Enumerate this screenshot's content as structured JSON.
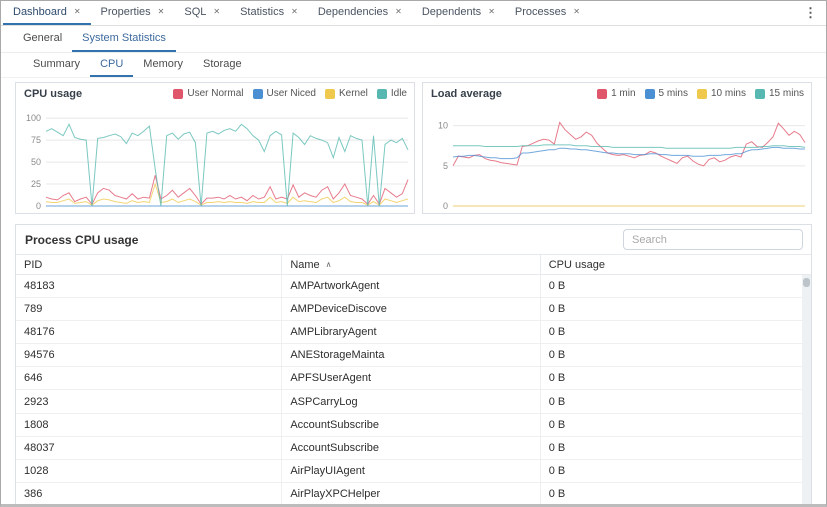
{
  "icons": {
    "close": "✕",
    "menu": "⋮",
    "sort_asc": "∧"
  },
  "colors": {
    "accent_blue": "#3272ad",
    "series_red": "#e0566b",
    "series_blue": "#4a90d2",
    "series_yellow": "#efc84e",
    "series_teal": "#56b8b0"
  },
  "main_tabs": [
    {
      "label": "Dashboard",
      "active": true
    },
    {
      "label": "Properties",
      "active": false
    },
    {
      "label": "SQL",
      "active": false
    },
    {
      "label": "Statistics",
      "active": false
    },
    {
      "label": "Dependencies",
      "active": false
    },
    {
      "label": "Dependents",
      "active": false
    },
    {
      "label": "Processes",
      "active": false
    }
  ],
  "dashboard_tabs": [
    {
      "label": "General",
      "active": false
    },
    {
      "label": "System Statistics",
      "active": true
    }
  ],
  "stats_tabs": [
    {
      "label": "Summary",
      "active": false
    },
    {
      "label": "CPU",
      "active": true
    },
    {
      "label": "Memory",
      "active": false
    },
    {
      "label": "Storage",
      "active": false
    }
  ],
  "chart_data": [
    {
      "type": "line",
      "name": "cpu-usage",
      "title": "CPU usage",
      "ylabel": "",
      "xlabel": "",
      "ylim": [
        0,
        107
      ],
      "yticks": [
        0,
        25,
        50,
        75,
        100
      ],
      "grid": true,
      "legend_position": "top-right",
      "series": [
        {
          "name": "User Normal",
          "color": "#e0566b",
          "values": [
            10,
            8,
            7,
            12,
            15,
            5,
            8,
            10,
            2,
            15,
            20,
            18,
            12,
            10,
            8,
            14,
            8,
            10,
            9,
            35,
            8,
            12,
            18,
            10,
            15,
            20,
            12,
            2,
            9,
            9,
            10,
            8,
            12,
            8,
            10,
            6,
            12,
            8,
            10,
            22,
            8,
            10,
            8,
            24,
            10,
            15,
            12,
            10,
            18,
            22,
            8,
            15,
            25,
            12,
            10,
            8,
            2,
            12,
            2,
            20,
            15,
            10,
            14,
            30
          ]
        },
        {
          "name": "User Niced",
          "color": "#4a90d2",
          "values": [
            0,
            0,
            0,
            0,
            0,
            0,
            0,
            0,
            0,
            0,
            0,
            0,
            0,
            0,
            0,
            0,
            0,
            0,
            0,
            0,
            0,
            0,
            0,
            0,
            0,
            0,
            0,
            0,
            0,
            0,
            0,
            0,
            0,
            0,
            0,
            0,
            0,
            0,
            0,
            0,
            0,
            0,
            0,
            0,
            0,
            0,
            0,
            0,
            0,
            0,
            0,
            0,
            0,
            0,
            0,
            0,
            0,
            0,
            0,
            0,
            0,
            0,
            0,
            0
          ]
        },
        {
          "name": "Kernel",
          "color": "#efc84e",
          "values": [
            5,
            4,
            4,
            6,
            8,
            3,
            4,
            5,
            1,
            6,
            8,
            7,
            5,
            4,
            3,
            6,
            4,
            5,
            4,
            25,
            4,
            5,
            8,
            4,
            6,
            8,
            5,
            1,
            4,
            4,
            5,
            4,
            5,
            4,
            4,
            3,
            5,
            4,
            4,
            10,
            4,
            5,
            3,
            10,
            5,
            6,
            5,
            4,
            8,
            10,
            4,
            6,
            10,
            5,
            4,
            4,
            1,
            5,
            1,
            8,
            6,
            4,
            6,
            8
          ]
        },
        {
          "name": "Idle",
          "color": "#56b8b0",
          "values": [
            85,
            88,
            84,
            80,
            93,
            78,
            76,
            75,
            0,
            77,
            78,
            80,
            82,
            79,
            71,
            83,
            80,
            85,
            91,
            42,
            0,
            80,
            83,
            76,
            82,
            84,
            72,
            0,
            83,
            85,
            82,
            86,
            88,
            85,
            93,
            88,
            80,
            75,
            62,
            80,
            85,
            81,
            0,
            83,
            78,
            70,
            80,
            77,
            75,
            72,
            55,
            78,
            62,
            80,
            77,
            75,
            0,
            80,
            0,
            70,
            75,
            72,
            77,
            64
          ]
        }
      ]
    },
    {
      "type": "line",
      "name": "load-average",
      "title": "Load average",
      "ylabel": "",
      "xlabel": "",
      "ylim": [
        0,
        11.7
      ],
      "yticks": [
        0,
        5,
        10
      ],
      "grid": true,
      "legend_position": "top-right",
      "series": [
        {
          "name": "1 min",
          "color": "#e0566b",
          "values": [
            5.0,
            6.2,
            6.1,
            6.0,
            6.3,
            6.4,
            5.9,
            5.7,
            5.6,
            5.4,
            5.3,
            5.2,
            5.1,
            7.4,
            7.5,
            7.8,
            8.1,
            8.3,
            8.2,
            7.7,
            10.4,
            9.5,
            8.9,
            8.3,
            8.6,
            9.2,
            8.8,
            7.8,
            7.2,
            6.6,
            6.4,
            6.3,
            6.4,
            6.2,
            6.0,
            6.3,
            6.4,
            6.8,
            6.6,
            6.2,
            5.9,
            5.6,
            5.3,
            6.0,
            6.2,
            5.6,
            5.2,
            5.0,
            5.8,
            6.0,
            5.5,
            5.7,
            6.1,
            6.3,
            6.1,
            7.7,
            8.0,
            7.4,
            7.3,
            7.9,
            8.6,
            10.3,
            9.6,
            8.8,
            9.3,
            8.9,
            7.9
          ]
        },
        {
          "name": "5 mins",
          "color": "#4a90d2",
          "values": [
            6.1,
            6.2,
            6.2,
            6.3,
            6.3,
            6.2,
            6.1,
            6.0,
            6.0,
            5.9,
            5.9,
            5.9,
            6.0,
            6.6,
            6.6,
            6.7,
            6.8,
            6.9,
            7.0,
            7.0,
            7.2,
            7.2,
            7.1,
            7.1,
            7.0,
            7.0,
            6.9,
            6.8,
            6.7,
            6.6,
            6.6,
            6.5,
            6.5,
            6.5,
            6.4,
            6.4,
            6.4,
            6.5,
            6.5,
            6.4,
            6.4,
            6.3,
            6.3,
            6.3,
            6.3,
            6.2,
            6.2,
            6.2,
            6.3,
            6.3,
            6.3,
            6.4,
            6.4,
            6.5,
            6.5,
            6.8,
            7.0,
            7.0,
            7.1,
            7.2,
            7.3,
            7.3,
            7.2,
            7.2,
            7.2,
            7.1,
            7.1
          ]
        },
        {
          "name": "10 mins",
          "color": "#efc84e",
          "values": [
            0,
            0,
            0,
            0,
            0,
            0,
            0,
            0,
            0,
            0,
            0,
            0,
            0,
            0,
            0,
            0,
            0,
            0,
            0,
            0,
            0,
            0,
            0,
            0,
            0,
            0,
            0,
            0,
            0,
            0,
            0,
            0,
            0,
            0,
            0,
            0,
            0,
            0,
            0,
            0,
            0,
            0,
            0,
            0,
            0,
            0,
            0,
            0,
            0,
            0,
            0,
            0,
            0,
            0,
            0,
            0,
            0,
            0,
            0,
            0,
            0,
            0,
            0,
            0,
            0,
            0,
            0
          ]
        },
        {
          "name": "15 mins",
          "color": "#56b8b0",
          "values": [
            7.5,
            7.5,
            7.5,
            7.5,
            7.5,
            7.5,
            7.4,
            7.4,
            7.4,
            7.4,
            7.4,
            7.4,
            7.4,
            7.5,
            7.5,
            7.5,
            7.5,
            7.6,
            7.6,
            7.6,
            7.6,
            7.6,
            7.6,
            7.5,
            7.5,
            7.5,
            7.4,
            7.4,
            7.4,
            7.4,
            7.3,
            7.3,
            7.3,
            7.3,
            7.3,
            7.3,
            7.3,
            7.3,
            7.3,
            7.3,
            7.2,
            7.2,
            7.2,
            7.2,
            7.2,
            7.2,
            7.2,
            7.2,
            7.2,
            7.2,
            7.2,
            7.2,
            7.2,
            7.3,
            7.3,
            7.3,
            7.3,
            7.3,
            7.4,
            7.4,
            7.5,
            7.5,
            7.5,
            7.4,
            7.4,
            7.4,
            7.3
          ]
        }
      ]
    }
  ],
  "process_table": {
    "title": "Process CPU usage",
    "search_placeholder": "Search",
    "columns": [
      "PID",
      "Name",
      "CPU usage"
    ],
    "sorted_column": "Name",
    "sort_direction": "asc",
    "rows": [
      [
        "48183",
        "AMPArtworkAgent",
        "0 B"
      ],
      [
        "789",
        "AMPDeviceDiscove",
        "0 B"
      ],
      [
        "48176",
        "AMPLibraryAgent",
        "0 B"
      ],
      [
        "94576",
        "ANEStorageMainta",
        "0 B"
      ],
      [
        "646",
        "APFSUserAgent",
        "0 B"
      ],
      [
        "2923",
        "ASPCarryLog",
        "0 B"
      ],
      [
        "1808",
        "AccountSubscribe",
        "0 B"
      ],
      [
        "48037",
        "AccountSubscribe",
        "0 B"
      ],
      [
        "1028",
        "AirPlayUIAgent",
        "0 B"
      ],
      [
        "386",
        "AirPlayXPCHelper",
        "0 B"
      ]
    ]
  }
}
